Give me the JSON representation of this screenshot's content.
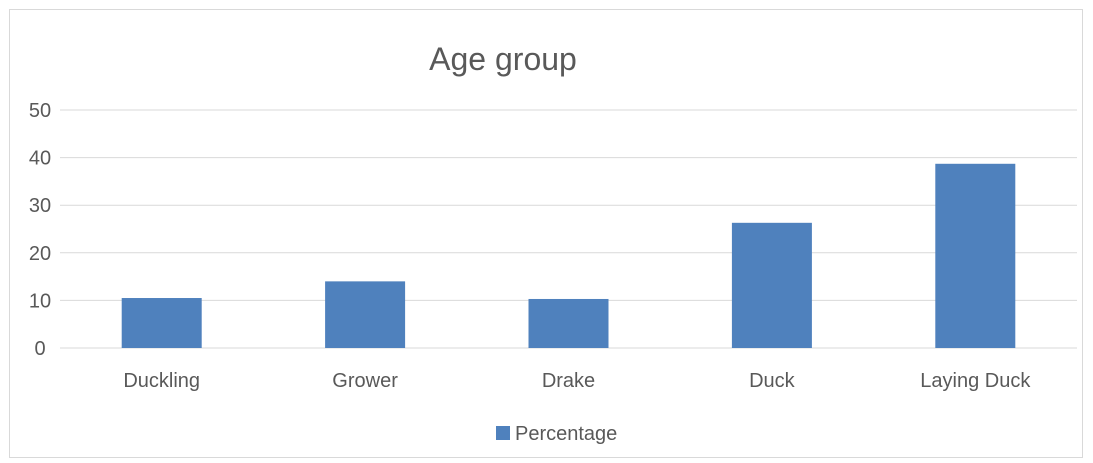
{
  "chart_data": {
    "type": "bar",
    "title": "Age group",
    "categories": [
      "Duckling",
      "Grower",
      "Drake",
      "Duck",
      "Laying Duck"
    ],
    "series": [
      {
        "name": "Percentage",
        "values": [
          10.5,
          14,
          10.3,
          26.3,
          38.7
        ]
      }
    ],
    "ylim": [
      0,
      50
    ],
    "yticks": [
      "0",
      "10",
      "20",
      "30",
      "40",
      "50"
    ],
    "grid": true,
    "legend_position": "bottom",
    "colors": {
      "bar": "#4f81bd",
      "grid": "#d9d9d9",
      "text": "#595959"
    }
  }
}
